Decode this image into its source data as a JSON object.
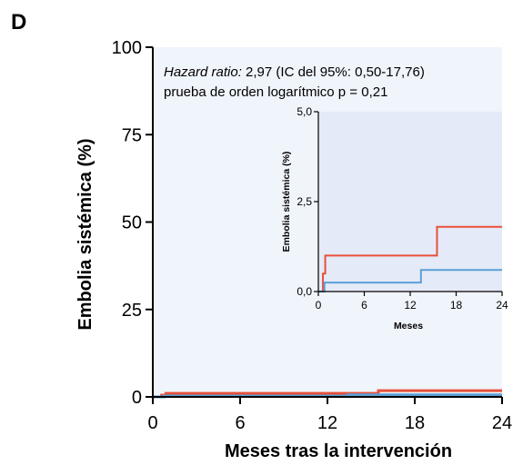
{
  "panel_label": "D",
  "chart_data": {
    "type": "line",
    "step": true,
    "xlabel": "Meses tras la intervención",
    "ylabel": "Embolia sistémica (%)",
    "xlim": [
      0,
      24
    ],
    "ylim": [
      0,
      100
    ],
    "xticks": [
      "0",
      "6",
      "12",
      "18",
      "24"
    ],
    "yticks": [
      "0",
      "25",
      "50",
      "75",
      "100"
    ],
    "annotation": {
      "line1_italic": "Hazard ratio:",
      "line1_rest": " 2,97 (IC del 95%: 0,50-17,76)",
      "line2": "prueba de orden logarítmico p = 0,21"
    },
    "series": [
      {
        "color": "#e8503a",
        "x": [
          0,
          0.6,
          0.6,
          0.9,
          0.9,
          15.5,
          15.5,
          24
        ],
        "y": [
          0,
          0,
          0.5,
          0.5,
          1.0,
          1.0,
          1.8,
          1.8
        ]
      },
      {
        "color": "#5aa0d8",
        "x": [
          0,
          0.8,
          0.8,
          13.4,
          13.4,
          24
        ],
        "y": [
          0,
          0,
          0.25,
          0.25,
          0.6,
          0.6
        ]
      }
    ],
    "inset": {
      "xlabel": "Meses",
      "ylabel": "Embolia sistémica (%)",
      "xlim": [
        0,
        24
      ],
      "ylim": [
        0,
        5
      ],
      "xticks": [
        "0",
        "6",
        "12",
        "18",
        "24"
      ],
      "yticks": [
        "0,0",
        "2,5",
        "5,0"
      ],
      "background": "#e4eaf7"
    },
    "background": "#f0f4fb"
  }
}
